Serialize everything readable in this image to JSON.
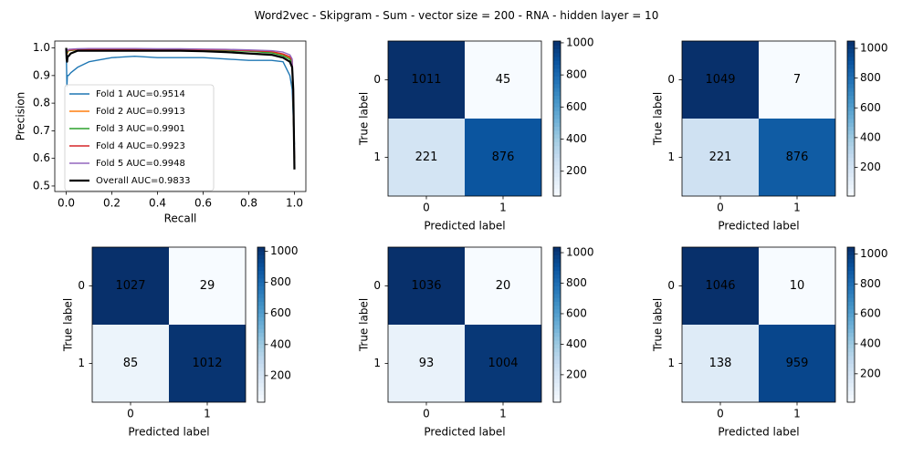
{
  "figure": {
    "suptitle": "Word2vec - Skipgram - Sum - vector size = 200 - RNA - hidden layer = 10"
  },
  "chart_data": [
    {
      "type": "line",
      "id": "pr-curve",
      "xlabel": "Recall",
      "ylabel": "Precision",
      "xlim": [
        -0.05,
        1.05
      ],
      "ylim": [
        0.48,
        1.025
      ],
      "xticks": [
        "0.0",
        "0.2",
        "0.4",
        "0.6",
        "0.8",
        "1.0"
      ],
      "yticks": [
        "0.5",
        "0.6",
        "0.7",
        "0.8",
        "0.9",
        "1.0"
      ],
      "legend_position": "lower-left",
      "series": [
        {
          "name": "Fold 1 AUC=0.9514",
          "color": "#1f77b4",
          "auc": 0.9514,
          "x": [
            0.0,
            0.003,
            0.005,
            0.01,
            0.02,
            0.05,
            0.1,
            0.2,
            0.3,
            0.4,
            0.5,
            0.6,
            0.7,
            0.8,
            0.9,
            0.95,
            0.98,
            0.99,
            1.0
          ],
          "y": [
            1.0,
            0.86,
            0.9,
            0.9,
            0.91,
            0.93,
            0.95,
            0.965,
            0.97,
            0.965,
            0.965,
            0.965,
            0.96,
            0.955,
            0.955,
            0.95,
            0.9,
            0.85,
            0.65
          ]
        },
        {
          "name": "Fold 2 AUC=0.9913",
          "color": "#ff7f0e",
          "auc": 0.9913,
          "x": [
            0.0,
            0.005,
            0.01,
            0.05,
            0.1,
            0.2,
            0.3,
            0.4,
            0.5,
            0.6,
            0.7,
            0.8,
            0.9,
            0.95,
            0.98,
            0.99,
            1.0
          ],
          "y": [
            1.0,
            0.98,
            0.99,
            0.993,
            0.995,
            0.996,
            0.995,
            0.995,
            0.994,
            0.993,
            0.992,
            0.99,
            0.985,
            0.975,
            0.965,
            0.95,
            0.6
          ]
        },
        {
          "name": "Fold 3 AUC=0.9901",
          "color": "#2ca02c",
          "auc": 0.9901,
          "x": [
            0.0,
            0.005,
            0.01,
            0.05,
            0.1,
            0.2,
            0.3,
            0.4,
            0.5,
            0.6,
            0.7,
            0.8,
            0.9,
            0.95,
            0.98,
            0.99,
            1.0
          ],
          "y": [
            1.0,
            0.985,
            0.99,
            0.994,
            0.995,
            0.995,
            0.995,
            0.994,
            0.993,
            0.992,
            0.99,
            0.988,
            0.982,
            0.972,
            0.96,
            0.94,
            0.6
          ]
        },
        {
          "name": "Fold 4 AUC=0.9923",
          "color": "#d62728",
          "auc": 0.9923,
          "x": [
            0.0,
            0.005,
            0.01,
            0.05,
            0.1,
            0.2,
            0.3,
            0.4,
            0.5,
            0.6,
            0.7,
            0.8,
            0.9,
            0.95,
            0.98,
            0.99,
            1.0
          ],
          "y": [
            1.0,
            0.99,
            0.992,
            0.995,
            0.996,
            0.996,
            0.996,
            0.995,
            0.995,
            0.994,
            0.993,
            0.99,
            0.987,
            0.978,
            0.968,
            0.955,
            0.6
          ]
        },
        {
          "name": "Fold 5 AUC=0.9948",
          "color": "#9467bd",
          "auc": 0.9948,
          "x": [
            0.0,
            0.005,
            0.01,
            0.05,
            0.1,
            0.2,
            0.3,
            0.4,
            0.5,
            0.6,
            0.7,
            0.8,
            0.9,
            0.95,
            0.98,
            0.99,
            1.0
          ],
          "y": [
            1.0,
            0.99,
            0.995,
            0.997,
            0.998,
            0.998,
            0.998,
            0.997,
            0.997,
            0.996,
            0.995,
            0.993,
            0.99,
            0.985,
            0.975,
            0.96,
            0.62
          ]
        },
        {
          "name": "Overall AUC=0.9833",
          "color": "#000000",
          "auc": 0.9833,
          "bold": true,
          "x": [
            0.0,
            0.002,
            0.004,
            0.006,
            0.01,
            0.02,
            0.05,
            0.1,
            0.2,
            0.3,
            0.4,
            0.5,
            0.6,
            0.7,
            0.8,
            0.9,
            0.95,
            0.98,
            0.99,
            0.995,
            1.0
          ],
          "y": [
            1.0,
            0.96,
            0.95,
            0.97,
            0.97,
            0.98,
            0.99,
            0.99,
            0.99,
            0.99,
            0.99,
            0.99,
            0.988,
            0.985,
            0.98,
            0.975,
            0.965,
            0.95,
            0.93,
            0.85,
            0.56
          ]
        }
      ]
    },
    {
      "type": "heatmap",
      "id": "cm-1",
      "xlabel": "Predicted label",
      "ylabel": "True label",
      "xticklabels": [
        "0",
        "1"
      ],
      "yticklabels": [
        "0",
        "1"
      ],
      "matrix": [
        [
          1011,
          45
        ],
        [
          221,
          876
        ]
      ],
      "colorbar_ticks": [
        200,
        400,
        600,
        800,
        1000
      ],
      "colormap": "Blues"
    },
    {
      "type": "heatmap",
      "id": "cm-2",
      "xlabel": "Predicted label",
      "ylabel": "True label",
      "xticklabels": [
        "0",
        "1"
      ],
      "yticklabels": [
        "0",
        "1"
      ],
      "matrix": [
        [
          1049,
          7
        ],
        [
          221,
          876
        ]
      ],
      "colorbar_ticks": [
        200,
        400,
        600,
        800,
        1000
      ],
      "colormap": "Blues"
    },
    {
      "type": "heatmap",
      "id": "cm-3",
      "xlabel": "Predicted label",
      "ylabel": "True label",
      "xticklabels": [
        "0",
        "1"
      ],
      "yticklabels": [
        "0",
        "1"
      ],
      "matrix": [
        [
          1027,
          29
        ],
        [
          85,
          1012
        ]
      ],
      "colorbar_ticks": [
        200,
        400,
        600,
        800,
        1000
      ],
      "colormap": "Blues"
    },
    {
      "type": "heatmap",
      "id": "cm-4",
      "xlabel": "Predicted label",
      "ylabel": "True label",
      "xticklabels": [
        "0",
        "1"
      ],
      "yticklabels": [
        "0",
        "1"
      ],
      "matrix": [
        [
          1036,
          20
        ],
        [
          93,
          1004
        ]
      ],
      "colorbar_ticks": [
        200,
        400,
        600,
        800,
        1000
      ],
      "colormap": "Blues"
    },
    {
      "type": "heatmap",
      "id": "cm-5",
      "xlabel": "Predicted label",
      "ylabel": "True label",
      "xticklabels": [
        "0",
        "1"
      ],
      "yticklabels": [
        "0",
        "1"
      ],
      "matrix": [
        [
          1046,
          10
        ],
        [
          138,
          959
        ]
      ],
      "colorbar_ticks": [
        200,
        400,
        600,
        800,
        1000
      ],
      "colormap": "Blues"
    }
  ]
}
